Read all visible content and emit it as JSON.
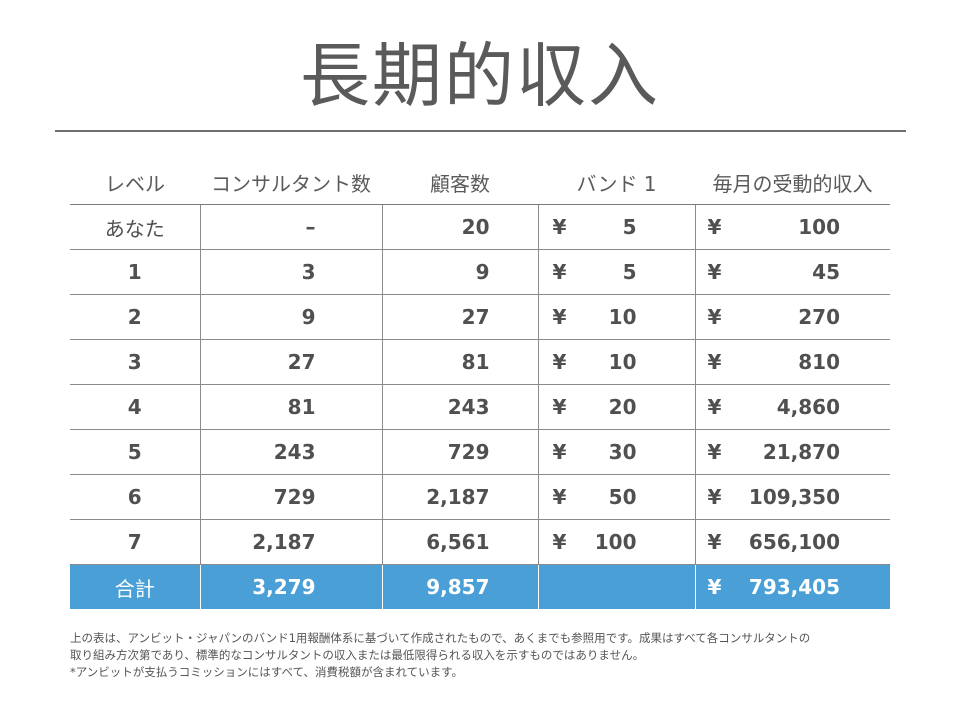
{
  "title": "長期的収入",
  "table": {
    "headers": [
      "レベル",
      "コンサルタント数",
      "顧客数",
      "バンド 1",
      "毎月の受動的収入"
    ],
    "currency": "¥",
    "rows": [
      {
        "level": "あなた",
        "consultants": "–",
        "customers": "20",
        "band": "5",
        "income": "100"
      },
      {
        "level": "1",
        "consultants": "3",
        "customers": "9",
        "band": "5",
        "income": "45"
      },
      {
        "level": "2",
        "consultants": "9",
        "customers": "27",
        "band": "10",
        "income": "270"
      },
      {
        "level": "3",
        "consultants": "27",
        "customers": "81",
        "band": "10",
        "income": "810"
      },
      {
        "level": "4",
        "consultants": "81",
        "customers": "243",
        "band": "20",
        "income": "4,860"
      },
      {
        "level": "5",
        "consultants": "243",
        "customers": "729",
        "band": "30",
        "income": "21,870"
      },
      {
        "level": "6",
        "consultants": "729",
        "customers": "2,187",
        "band": "50",
        "income": "109,350"
      },
      {
        "level": "7",
        "consultants": "2,187",
        "customers": "6,561",
        "band": "100",
        "income": "656,100"
      }
    ],
    "total": {
      "label": "合計",
      "consultants": "3,279",
      "customers": "9,857",
      "income": "793,405"
    }
  },
  "notes": [
    "上の表は、アンビット・ジャパンのバンド1用報酬体系に基づいて作成されたもので、あくまでも参照用です。成果はすべて各コンサルタントの",
    "取り組み方次第であり、標準的なコンサルタントの収入または最低限得られる収入を示すものではありません。",
    "*アンビットが支払うコミッションにはすべて、消費税額が含まれています。"
  ],
  "colors": {
    "total_row_bg": "#4aa0d6",
    "text": "#595959",
    "rule": "#6e6e6e"
  }
}
